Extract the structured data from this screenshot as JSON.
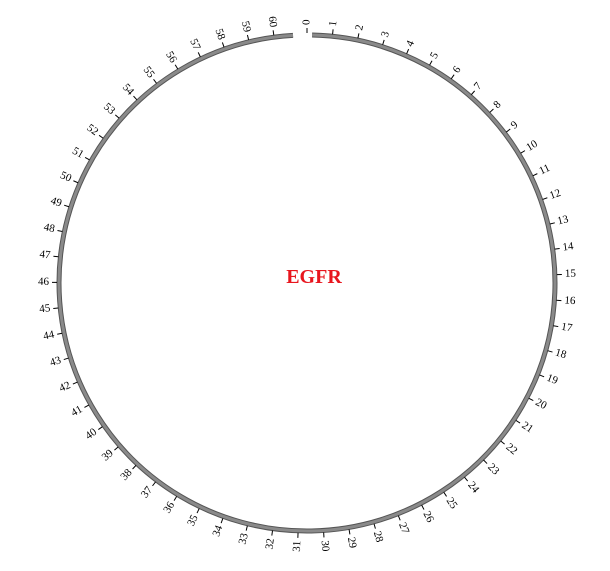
{
  "diagram": {
    "title": "EGFR",
    "title_color": "#e8161e",
    "ring_color": "#8a8a8a",
    "tick_color": "#000000",
    "ticks": [
      "0",
      "1",
      "2",
      "3",
      "4",
      "5",
      "6",
      "7",
      "8",
      "9",
      "10",
      "11",
      "12",
      "13",
      "14",
      "15",
      "16",
      "17",
      "18",
      "19",
      "20",
      "21",
      "22",
      "23",
      "24",
      "25",
      "26",
      "27",
      "28",
      "29",
      "30",
      "31",
      "32",
      "33",
      "34",
      "35",
      "36",
      "37",
      "38",
      "39",
      "40",
      "41",
      "42",
      "43",
      "44",
      "45",
      "46",
      "47",
      "48",
      "49",
      "50",
      "51",
      "52",
      "53",
      "54",
      "55",
      "56",
      "57",
      "58",
      "59",
      "60"
    ]
  }
}
